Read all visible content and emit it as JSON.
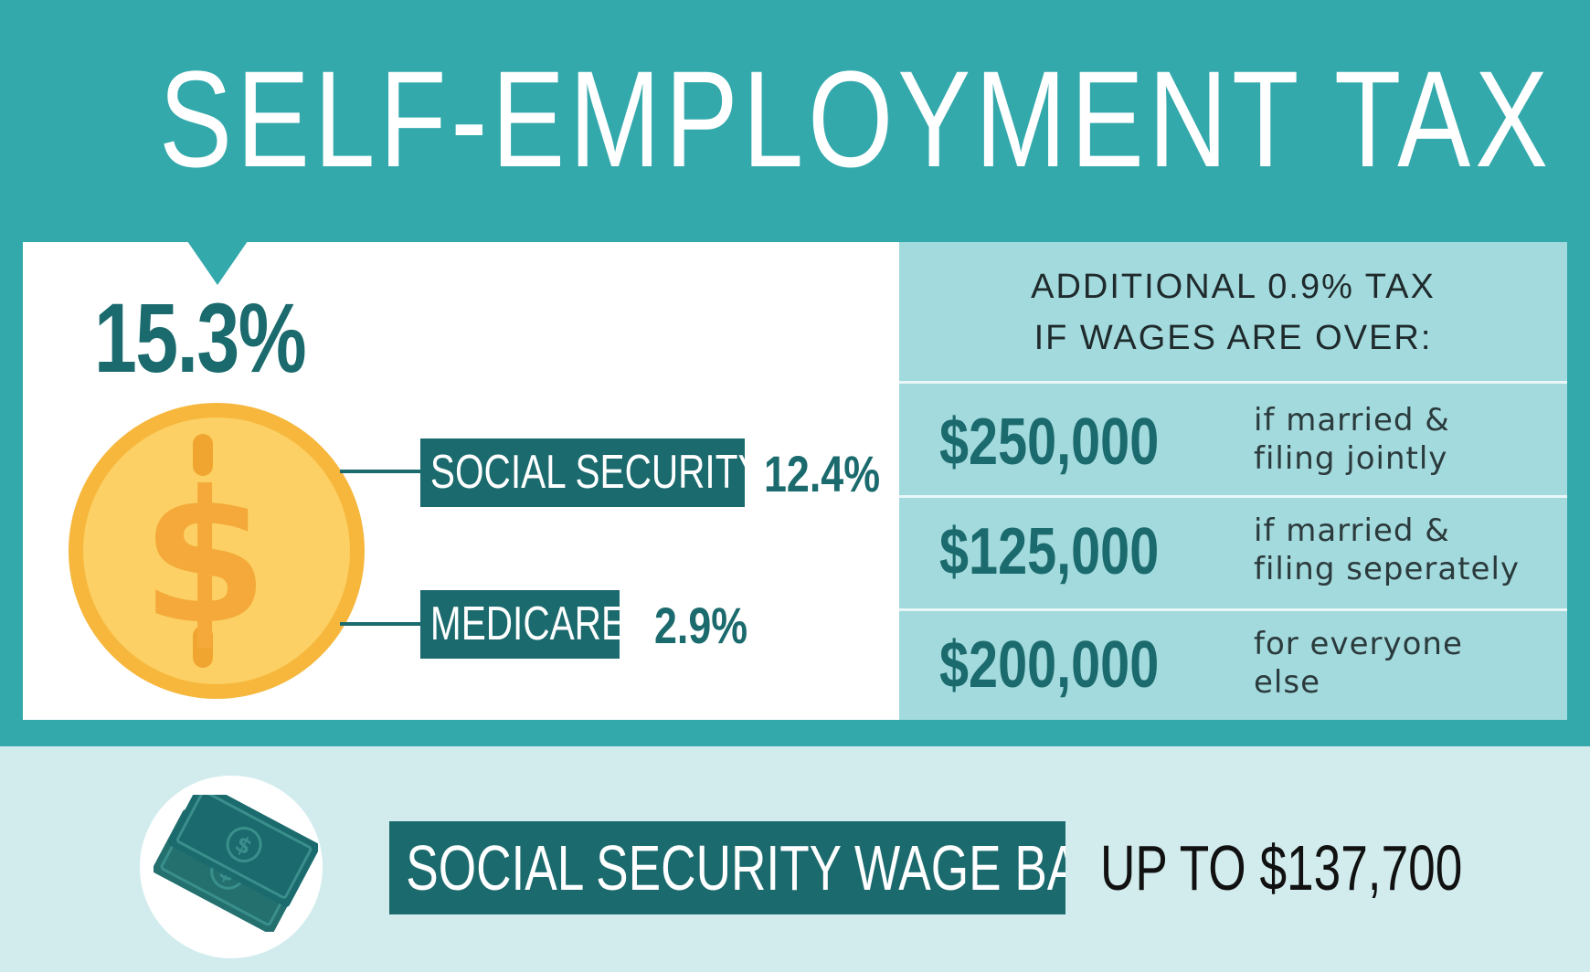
{
  "title": "SELF-EMPLOYMENT TAX RATE",
  "total_rate": "15.3%",
  "components": [
    {
      "label": "SOCIAL SECURITY",
      "value": "12.4%"
    },
    {
      "label": "MEDICARE",
      "value": "2.9%"
    }
  ],
  "additional_tax": {
    "heading_line1": "ADDITIONAL 0.9% TAX",
    "heading_line2": "IF WAGES ARE OVER:",
    "thresholds": [
      {
        "amount": "$250,000",
        "desc_line1": "if married &",
        "desc_line2": "filing jointly"
      },
      {
        "amount": "$125,000",
        "desc_line1": "if married &",
        "desc_line2": "filing seperately"
      },
      {
        "amount": "$200,000",
        "desc_line1": "for everyone",
        "desc_line2": "else"
      }
    ]
  },
  "wage_base": {
    "label": "SOCIAL SECURITY WAGE BASE",
    "value": "UP TO $137,700"
  },
  "icons": {
    "coin": "dollar-coin-icon",
    "money": "cash-bills-icon"
  },
  "colors": {
    "teal": "#33a9ac",
    "dark_teal": "#1b6a6d",
    "light_teal": "#a3dadd",
    "pale_teal": "#d2ecee",
    "coin_gold": "#f6b73c"
  }
}
